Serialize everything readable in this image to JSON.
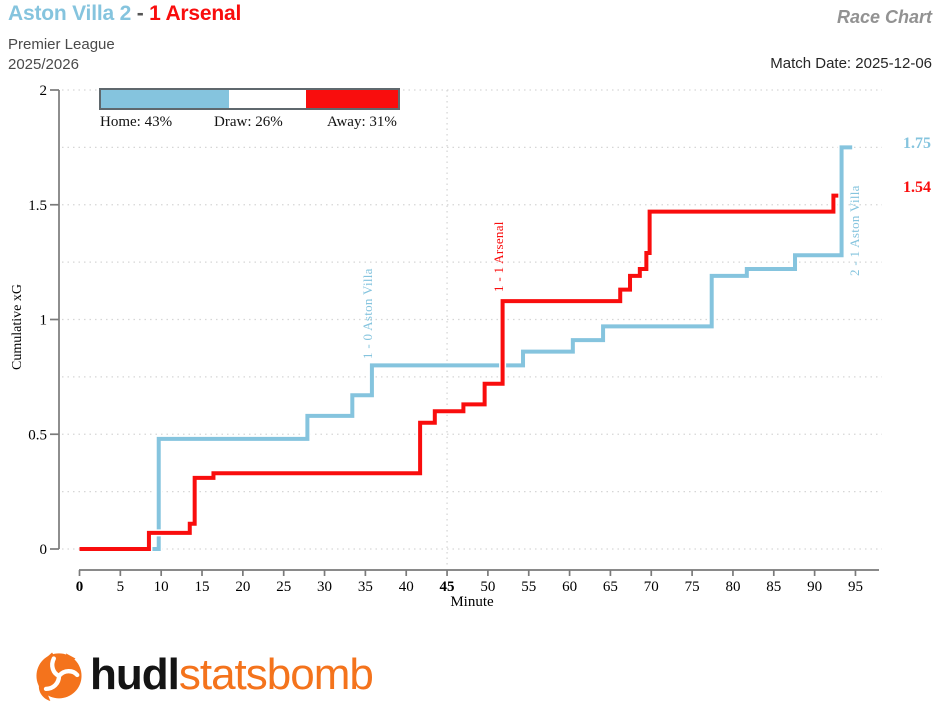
{
  "header": {
    "title_home": "Aston Villa 2",
    "title_sep": " - ",
    "title_away": "1 Arsenal",
    "competition": "Premier League",
    "season": "2025/2026",
    "chart_type_label": "Race Chart",
    "match_date": "Match Date: 2025-12-06"
  },
  "legend": {
    "home_label": "Home: 43%",
    "draw_label": "Draw: 26%",
    "away_label": "Away: 31%",
    "home_pct": 43,
    "draw_pct": 26,
    "away_pct": 31
  },
  "colors": {
    "home": "#85C4DE",
    "away": "#F90D0D",
    "draw": "#FFFFFF",
    "axis": "#7a7a7a",
    "grid": "#d6d6d6",
    "orange": "#F4731C"
  },
  "chart_data": {
    "type": "line",
    "subtype": "step-after",
    "title": "",
    "xlabel": "Minute",
    "ylabel": "Cumulative xG",
    "xlim": [
      0,
      98
    ],
    "ylim": [
      0,
      2
    ],
    "x_ticks": [
      0,
      5,
      10,
      15,
      20,
      25,
      30,
      35,
      40,
      45,
      50,
      55,
      60,
      65,
      70,
      75,
      80,
      85,
      90,
      95
    ],
    "bold_x_ticks": [
      0,
      45
    ],
    "y_ticks": [
      "0",
      "0.5",
      "1",
      "1.5",
      "2"
    ],
    "y_grid_step": 0.25,
    "halftime_minute": 45,
    "grid": "dotted",
    "series": [
      {
        "name": "Aston Villa",
        "role": "home",
        "final_xg": 1.75,
        "end_minute": 94.6,
        "points": [
          [
            0,
            0
          ],
          [
            9.7,
            0.48
          ],
          [
            27.9,
            0.58
          ],
          [
            33.4,
            0.67
          ],
          [
            35.8,
            0.8
          ],
          [
            54.3,
            0.86
          ],
          [
            60.4,
            0.91
          ],
          [
            64.1,
            0.97
          ],
          [
            77.4,
            1.19
          ],
          [
            81.7,
            1.22
          ],
          [
            87.6,
            1.28
          ],
          [
            93.3,
            1.75
          ]
        ]
      },
      {
        "name": "Arsenal",
        "role": "away",
        "final_xg": 1.54,
        "end_minute": 92.9,
        "points": [
          [
            0,
            0
          ],
          [
            8.5,
            0.07
          ],
          [
            13.5,
            0.11
          ],
          [
            14.1,
            0.31
          ],
          [
            16.4,
            0.33
          ],
          [
            41.7,
            0.55
          ],
          [
            43.5,
            0.6
          ],
          [
            47,
            0.63
          ],
          [
            49.6,
            0.72
          ],
          [
            51.8,
            1.08
          ],
          [
            66.2,
            1.13
          ],
          [
            67.4,
            1.19
          ],
          [
            68.6,
            1.22
          ],
          [
            69.4,
            1.29
          ],
          [
            69.8,
            1.47
          ],
          [
            92.3,
            1.54
          ]
        ]
      }
    ],
    "annotations": [
      {
        "text": "1 - 0 Aston Villa",
        "minute": 35.8,
        "team": "home",
        "y": 0.83,
        "side": "left"
      },
      {
        "text": "1 - 1 Arsenal",
        "minute": 51.8,
        "team": "away",
        "y": 1.12,
        "side": "left"
      },
      {
        "text": "2 - 1 Aston Villa",
        "minute": 93.3,
        "team": "home",
        "y": 1.19,
        "side": "right"
      }
    ],
    "end_labels": {
      "home": "1.75",
      "away": "1.54"
    }
  },
  "footer": {
    "logo_bold": "hudl",
    "logo_light": "statsbomb"
  }
}
